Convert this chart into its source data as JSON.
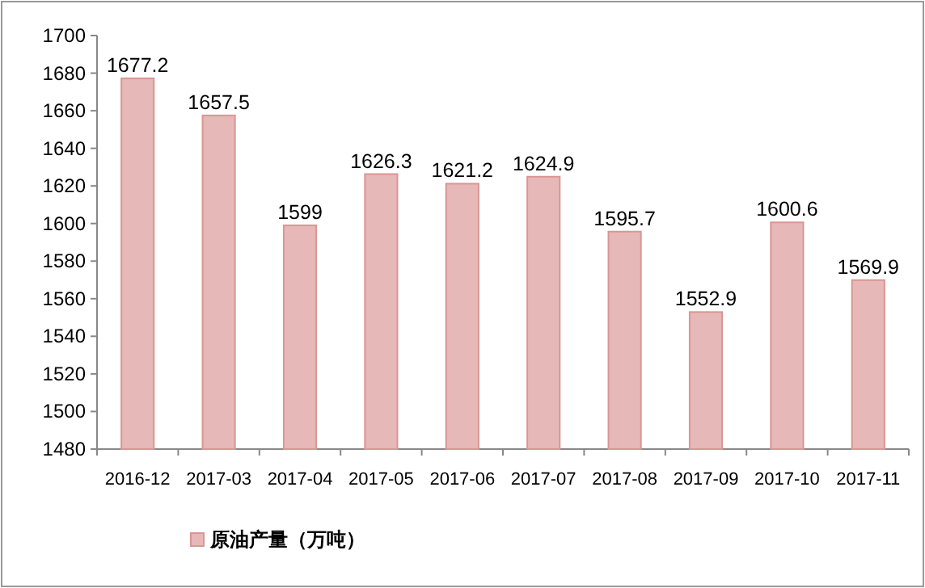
{
  "chart_data": {
    "type": "bar",
    "categories": [
      "2016-12",
      "2017-03",
      "2017-04",
      "2017-05",
      "2017-06",
      "2017-07",
      "2017-08",
      "2017-09",
      "2017-10",
      "2017-11"
    ],
    "series": [
      {
        "name": "原油产量（万吨）",
        "color": "#e6b8b7",
        "values": [
          1677.2,
          1657.5,
          1599,
          1626.3,
          1621.2,
          1624.9,
          1595.7,
          1552.9,
          1600.6,
          1569.9
        ]
      }
    ],
    "ylim": [
      1480,
      1700
    ],
    "yticks": [
      1480,
      1500,
      1520,
      1540,
      1560,
      1580,
      1600,
      1620,
      1640,
      1660,
      1680,
      1700
    ],
    "data_labels": true,
    "legend": "bottom"
  }
}
